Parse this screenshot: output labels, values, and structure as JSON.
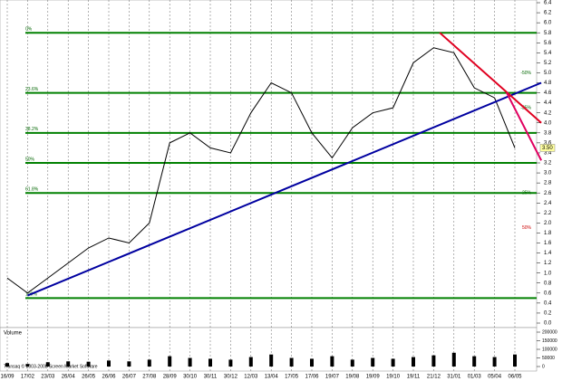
{
  "chart_data": {
    "type": "line",
    "categories": [
      "16/09",
      "17/02",
      "23/03",
      "26/04",
      "26/05",
      "26/06",
      "26/07",
      "27/08",
      "28/09",
      "30/10",
      "30/11",
      "30/12",
      "12/03",
      "13/04",
      "17/05",
      "17/06",
      "19/07",
      "19/08",
      "19/09",
      "19/10",
      "19/11",
      "21/12",
      "31/01",
      "01/03",
      "05/04",
      "06/05"
    ],
    "series": [
      {
        "name": "Price",
        "color": "#000000",
        "values": [
          0.9,
          0.6,
          0.9,
          1.2,
          1.5,
          1.7,
          1.6,
          2.0,
          3.6,
          3.8,
          3.5,
          3.4,
          4.2,
          4.8,
          4.6,
          3.8,
          3.3,
          3.9,
          4.2,
          4.3,
          5.2,
          5.5,
          5.4,
          4.7,
          4.5,
          3.5
        ]
      }
    ],
    "volume": {
      "label": "Volume",
      "color": "#000000",
      "values": [
        20000,
        15000,
        25000,
        30000,
        28000,
        35000,
        30000,
        40000,
        60000,
        50000,
        45000,
        40000,
        55000,
        70000,
        50000,
        45000,
        60000,
        40000,
        50000,
        45000,
        55000,
        65000,
        80000,
        60000,
        55000,
        70000
      ],
      "ylim": [
        0,
        200000
      ],
      "yticks": [
        0,
        50000,
        100000,
        150000,
        200000
      ]
    },
    "ylim": [
      0,
      6.4
    ],
    "yticks": [
      {
        "value": 0,
        "label": "0.0"
      },
      0.2,
      0.4,
      0.6,
      0.8,
      {
        "value": 1,
        "label": "1.0"
      },
      1.2,
      1.4,
      1.6,
      1.8,
      {
        "value": 2,
        "label": "2.0"
      },
      2.2,
      2.4,
      2.6,
      2.8,
      {
        "value": 3,
        "label": "3.0"
      },
      3.2,
      3.4,
      3.6,
      3.8,
      {
        "value": 4,
        "label": "4.0"
      },
      4.2,
      4.4,
      4.6,
      4.8,
      {
        "value": 5,
        "label": "5.0"
      },
      5.2,
      5.4,
      5.6,
      5.8,
      {
        "value": 6,
        "label": "6.0"
      },
      6.2,
      6.4
    ],
    "grid": true,
    "fib_levels": [
      {
        "label": "0%",
        "value": 5.8
      },
      {
        "label": "23.6%",
        "value": 4.6
      },
      {
        "label": "38.2%",
        "value": 3.8
      },
      {
        "label": "50%",
        "value": 3.2
      },
      {
        "label": "61.8%",
        "value": 2.6
      },
      {
        "label": "100%",
        "value": 0.5
      }
    ],
    "fib_color": "#008000",
    "right_labels": [
      {
        "label": "-50%",
        "value": 5.0
      },
      {
        "label": "-25%",
        "value": 4.3
      },
      {
        "label": "25%",
        "value": 2.6
      },
      {
        "label": "50%",
        "value": 1.9
      }
    ],
    "trend_lines": [
      {
        "color": "#0000a0",
        "start": [
          1.0,
          0.55
        ],
        "end": [
          26.3,
          4.8
        ]
      },
      {
        "color": "#e00020",
        "start": [
          21.3,
          5.8
        ],
        "end": [
          26.3,
          4.0
        ]
      },
      {
        "color": "#e00060",
        "start": [
          24.6,
          4.6
        ],
        "end": [
          26.3,
          3.25
        ]
      }
    ],
    "last_price": {
      "label": "3.50",
      "value": 3.5
    },
    "copyright": "Transaq © 2003-2008 Screen Market Software"
  }
}
